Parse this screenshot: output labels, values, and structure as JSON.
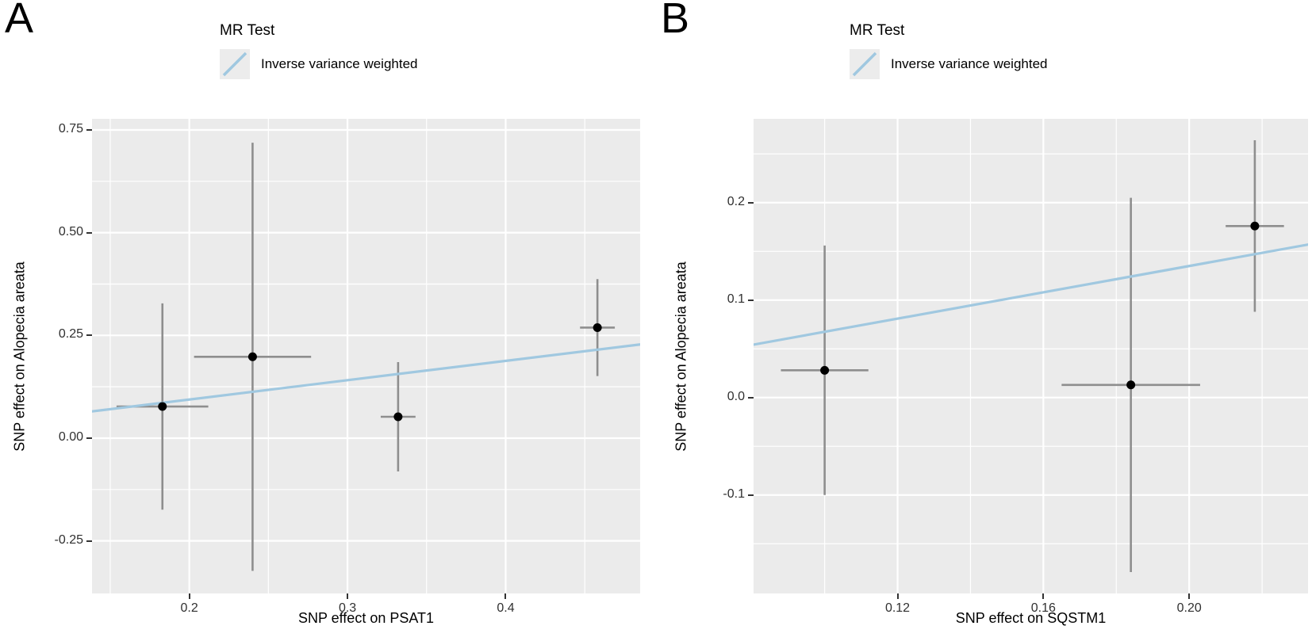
{
  "colors": {
    "ivw_line": "#a0c8e0",
    "panel_bg": "#ebebeb",
    "gridline": "#ffffff",
    "error_bar": "#8e8e8e",
    "point": "#000000",
    "legend_key_bg": "#ececec",
    "tick_text": "#303030"
  },
  "legend": {
    "title": "MR Test",
    "entry": "Inverse variance weighted"
  },
  "chart_data": [
    {
      "panel_label": "A",
      "type": "scatter",
      "title": "MR Test",
      "legend_entries": [
        "Inverse variance weighted"
      ],
      "xlabel": "SNP effect on PSAT1",
      "ylabel": "SNP effect on Alopecia areata",
      "xlim": [
        0.1385,
        0.485
      ],
      "ylim": [
        -0.378,
        0.777
      ],
      "grid": true,
      "legend_position": "top",
      "x_ticks": [
        0.2,
        0.3,
        0.4
      ],
      "x_tick_labels": [
        "0.2",
        "0.3",
        "0.4"
      ],
      "y_ticks": [
        0.75,
        0.5,
        0.25,
        0.0,
        -0.25
      ],
      "y_tick_labels": [
        "0.75",
        "0.50",
        "0.25",
        "0.00",
        "-0.25"
      ],
      "x_minor_ticks": [
        0.15,
        0.25,
        0.35,
        0.45
      ],
      "y_minor_ticks": [
        0.625,
        0.375,
        0.125,
        -0.125
      ],
      "points": [
        {
          "x": 0.183,
          "y": 0.077,
          "xerr": 0.029,
          "yerr": 0.251
        },
        {
          "x": 0.24,
          "y": 0.198,
          "xerr": 0.037,
          "yerr": 0.521
        },
        {
          "x": 0.332,
          "y": 0.052,
          "xerr": 0.011,
          "yerr": 0.133
        },
        {
          "x": 0.458,
          "y": 0.269,
          "xerr": 0.011,
          "yerr": 0.118
        }
      ],
      "regression_line": {
        "method": "Inverse variance weighted",
        "slope": 0.47,
        "intercept": 0
      }
    },
    {
      "panel_label": "B",
      "type": "scatter",
      "title": "MR Test",
      "legend_entries": [
        "Inverse variance weighted"
      ],
      "xlabel": "SNP effect on SQSTM1",
      "ylabel": "SNP effect on Alopecia areata",
      "xlim": [
        0.0805,
        0.2326
      ],
      "ylim": [
        -0.201,
        0.286
      ],
      "grid": true,
      "legend_position": "top",
      "x_ticks": [
        0.12,
        0.16,
        0.2
      ],
      "x_tick_labels": [
        "0.12",
        "0.16",
        "0.20"
      ],
      "y_ticks": [
        0.2,
        0.1,
        0.0,
        -0.1
      ],
      "y_tick_labels": [
        "0.2",
        "0.1",
        "0.0",
        "-0.1"
      ],
      "x_minor_ticks": [
        0.1,
        0.14,
        0.18,
        0.22
      ],
      "y_minor_ticks": [
        0.25,
        0.15,
        0.05,
        -0.05,
        -0.15
      ],
      "points": [
        {
          "x": 0.1,
          "y": 0.028,
          "xerr": 0.012,
          "yerr": 0.128
        },
        {
          "x": 0.184,
          "y": 0.013,
          "xerr": 0.019,
          "yerr": 0.192
        },
        {
          "x": 0.218,
          "y": 0.176,
          "xerr": 0.008,
          "yerr": 0.088
        }
      ],
      "regression_line": {
        "method": "Inverse variance weighted",
        "slope": 0.675,
        "intercept": 0
      }
    }
  ]
}
